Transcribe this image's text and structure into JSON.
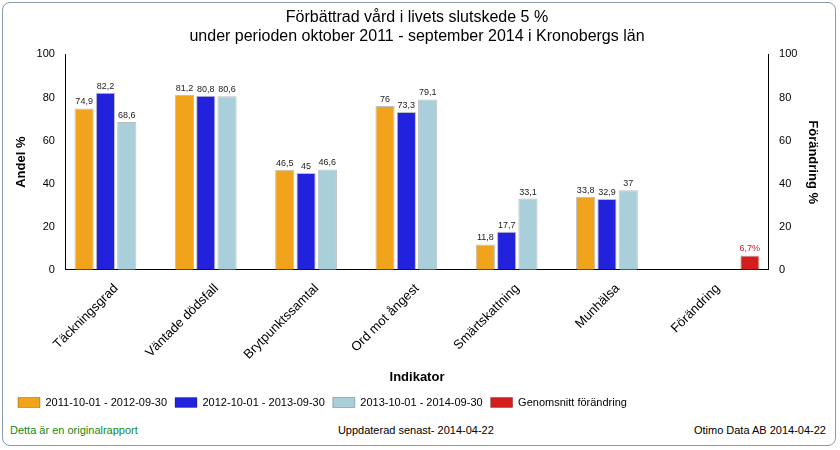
{
  "chart_data": {
    "type": "bar",
    "title": "Förbättrad vård i livets slutskede 5 %",
    "subtitle": "under perioden oktober 2011 - september 2014 i Kronobergs län",
    "x_label": "Indikator",
    "y_label": "Andel %",
    "y2_label": "Förändring %",
    "categories": [
      "Täckningsgrad",
      "Väntade dödsfall",
      "Brytpunktssamtal",
      "Ord mot ångest",
      "Smärtskattning",
      "Munhälsa",
      "Förändring"
    ],
    "series": [
      {
        "name": "2011-10-01 - 2012-09-30",
        "color": "#f2a31c",
        "values": [
          74.9,
          81.2,
          46.5,
          76,
          11.8,
          33.8,
          null
        ],
        "value_labels": [
          "74,9",
          "81,2",
          "46,5",
          "76",
          "11,8",
          "33,8",
          null
        ]
      },
      {
        "name": "2012-10-01 - 2013-09-30",
        "color": "#2222dd",
        "values": [
          82.2,
          80.8,
          45,
          73.3,
          17.7,
          32.9,
          null
        ],
        "value_labels": [
          "82,2",
          "80,8",
          "45",
          "73,3",
          "17,7",
          "32,9",
          null
        ]
      },
      {
        "name": "2013-10-01 - 2014-09-30",
        "color": "#a9cfdb",
        "values": [
          68.6,
          80.6,
          46.6,
          79.1,
          33.1,
          37,
          null
        ],
        "value_labels": [
          "68,6",
          "80,6",
          "46,6",
          "79,1",
          "33,1",
          "37",
          null
        ]
      },
      {
        "name": "Genomsnitt förändring",
        "color": "#d41e1e",
        "axis": "y2",
        "values": [
          null,
          null,
          null,
          null,
          null,
          null,
          6.7
        ],
        "value_labels": [
          null,
          null,
          null,
          null,
          null,
          null,
          "6,7%"
        ]
      }
    ],
    "ylim": [
      0,
      100
    ],
    "yticks": [
      0,
      20,
      40,
      60,
      80,
      100
    ],
    "y2lim": [
      0,
      100
    ],
    "y2ticks": [
      0,
      20,
      40,
      60,
      80,
      100
    ],
    "grid": false,
    "legend": "bottom-left",
    "data_labels": true
  },
  "footer": {
    "left": "Detta är en originalrapport",
    "center": "Uppdaterad senast- 2014-04-22",
    "right": "Otimo Data AB 2014-04-22"
  }
}
